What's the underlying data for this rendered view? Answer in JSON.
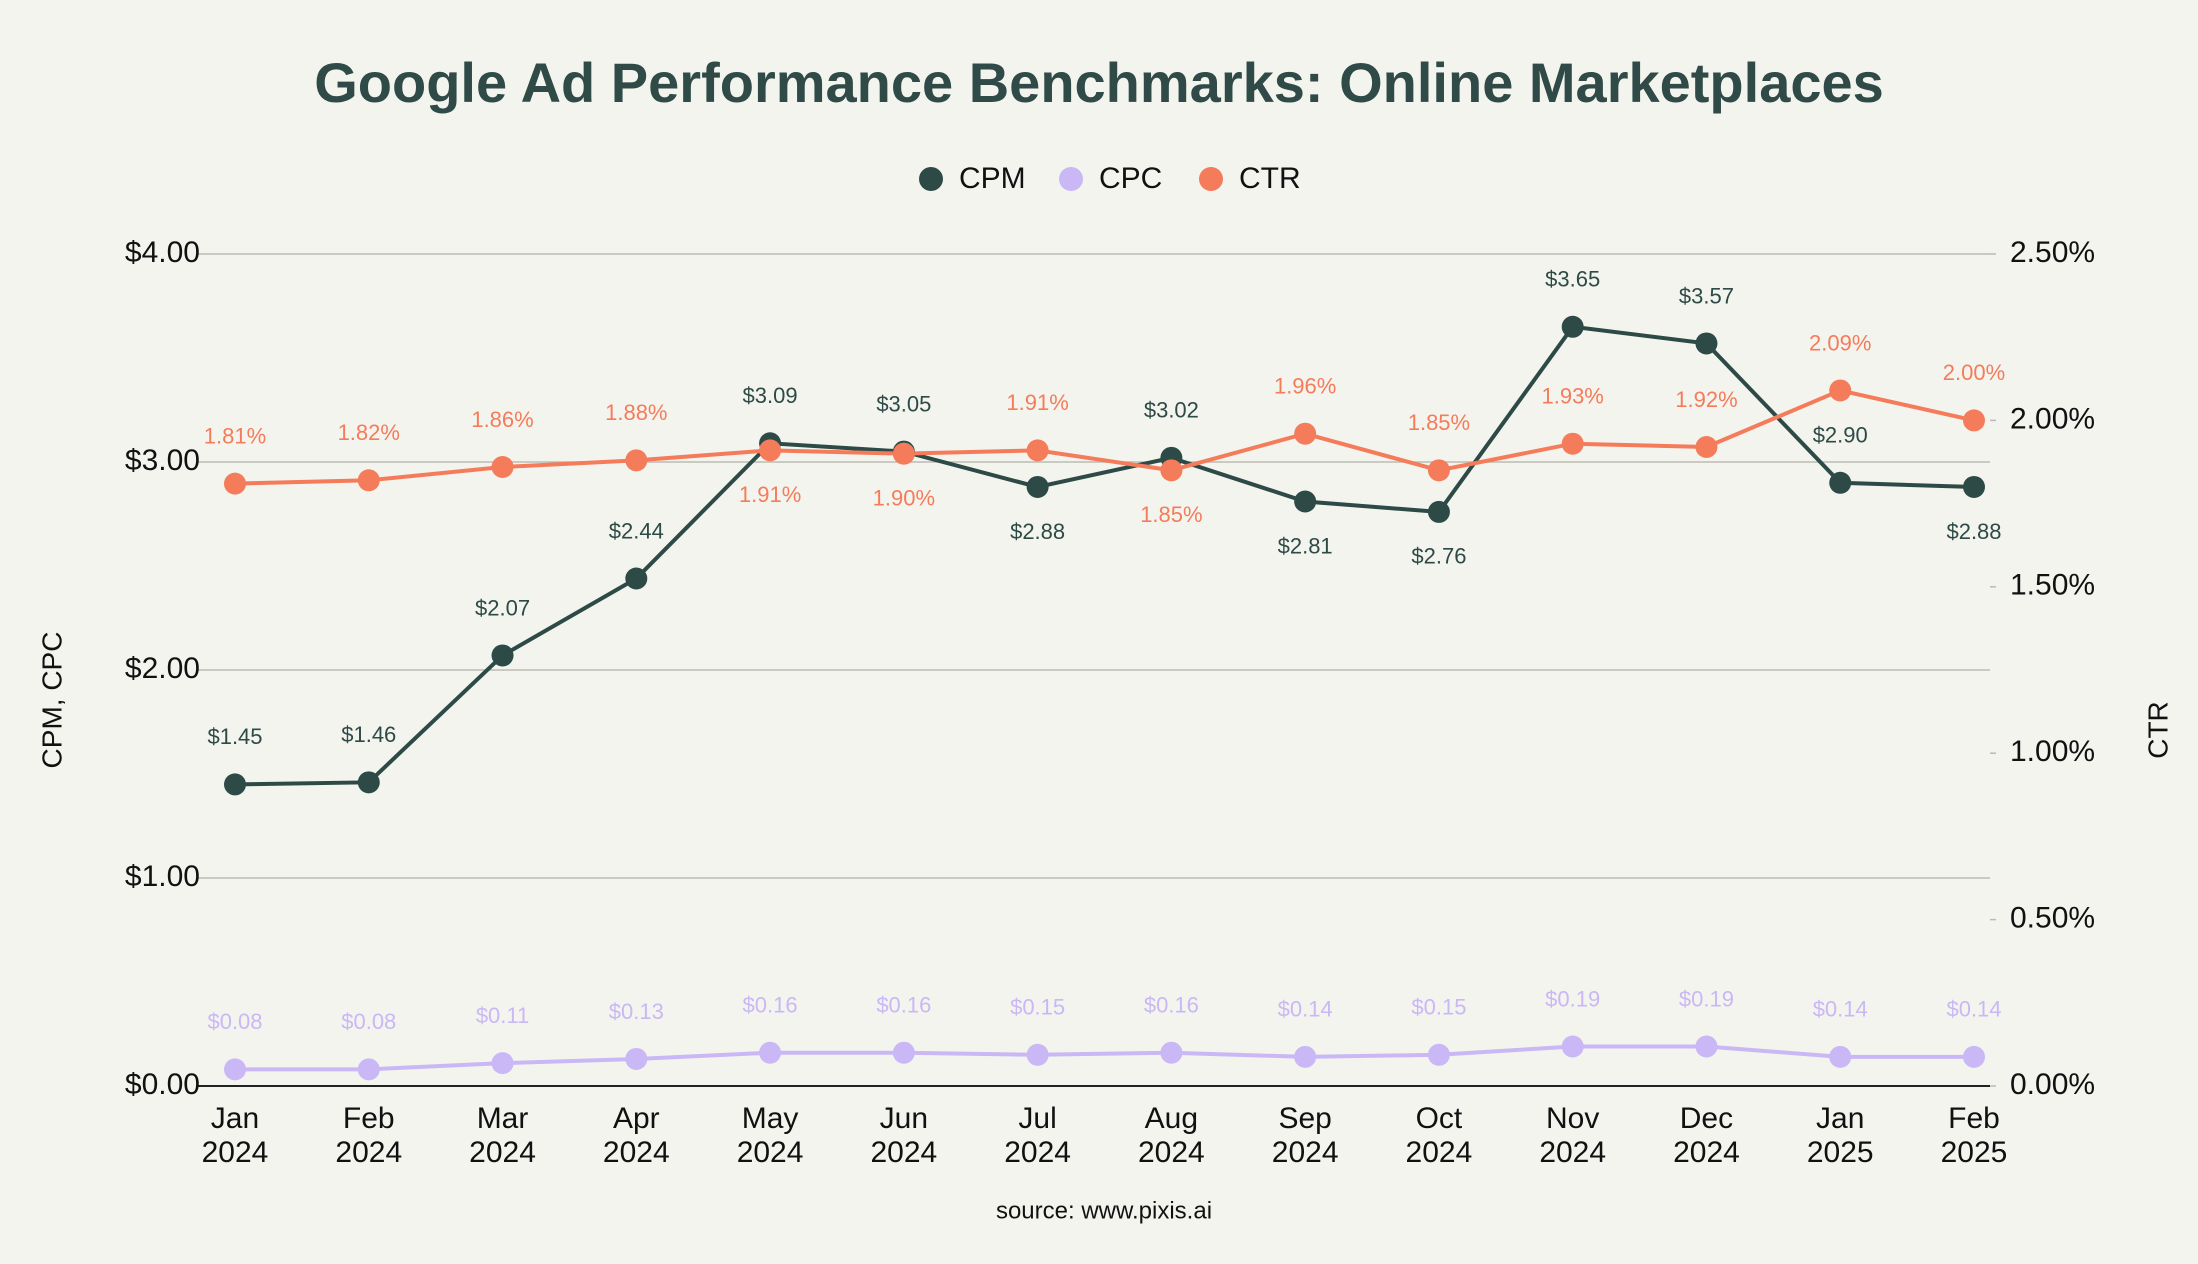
{
  "chart_data": {
    "type": "line",
    "title": "Google Ad Performance Benchmarks: Online Marketplaces",
    "source": "source: www.pixis.ai",
    "ylabel": "CPM, CPC",
    "y2label": "CTR",
    "categories": [
      "Jan 2024",
      "Feb 2024",
      "Mar 2024",
      "Apr 2024",
      "May 2024",
      "Jun 2024",
      "Jul 2024",
      "Aug 2024",
      "Sep 2024",
      "Oct 2024",
      "Nov 2024",
      "Dec 2024",
      "Jan 2025",
      "Feb 2025"
    ],
    "ylim": [
      0,
      4
    ],
    "yticks": [
      {
        "value": 0,
        "label": "$0.00"
      },
      {
        "value": 1,
        "label": "$1.00"
      },
      {
        "value": 2,
        "label": "$2.00"
      },
      {
        "value": 3,
        "label": "$3.00"
      },
      {
        "value": 4,
        "label": "$4.00"
      }
    ],
    "y2lim": [
      0,
      2.5
    ],
    "y2ticks": [
      {
        "value": 0,
        "label": "0.00%"
      },
      {
        "value": 0.5,
        "label": "0.50%"
      },
      {
        "value": 1,
        "label": "1.00%"
      },
      {
        "value": 1.5,
        "label": "1.50%"
      },
      {
        "value": 2,
        "label": "2.00%"
      },
      {
        "value": 2.5,
        "label": "2.50%"
      }
    ],
    "grid": true,
    "legend": "top",
    "series": [
      {
        "name": "CPM",
        "color": "#2d4a47",
        "values": [
          1.45,
          1.46,
          2.07,
          2.44,
          3.09,
          3.05,
          2.88,
          3.02,
          2.81,
          2.76,
          3.65,
          3.57,
          2.9,
          2.88
        ],
        "value_labels": [
          "$1.45",
          "$1.46",
          "$2.07",
          "$2.44",
          "$3.09",
          "$3.05",
          "$2.88",
          "$3.02",
          "$2.81",
          "$2.76",
          "$3.65",
          "$3.57",
          "$2.90",
          "$2.88"
        ]
      },
      {
        "name": "CPC",
        "color": "#c9b8f5",
        "values": [
          0.08,
          0.08,
          0.11,
          0.13,
          0.16,
          0.16,
          0.15,
          0.16,
          0.14,
          0.15,
          0.19,
          0.19,
          0.14,
          0.14
        ],
        "value_labels": [
          "$0.08",
          "$0.08",
          "$0.11",
          "$0.13",
          "$0.16",
          "$0.16",
          "$0.15",
          "$0.16",
          "$0.14",
          "$0.15",
          "$0.19",
          "$0.19",
          "$0.14",
          "$0.14"
        ]
      },
      {
        "name": "CTR",
        "color": "#f47c5a",
        "axis": "y2",
        "values": [
          1.81,
          1.82,
          1.86,
          1.88,
          1.91,
          1.9,
          1.91,
          1.85,
          1.96,
          1.85,
          1.93,
          1.92,
          2.09,
          2.0
        ],
        "value_labels": [
          "1.81%",
          "1.82%",
          "1.86%",
          "1.88%",
          "1.91%",
          "1.90%",
          "1.91%",
          "1.85%",
          "1.96%",
          "1.85%",
          "1.93%",
          "1.92%",
          "2.09%",
          "2.00%"
        ]
      }
    ]
  }
}
